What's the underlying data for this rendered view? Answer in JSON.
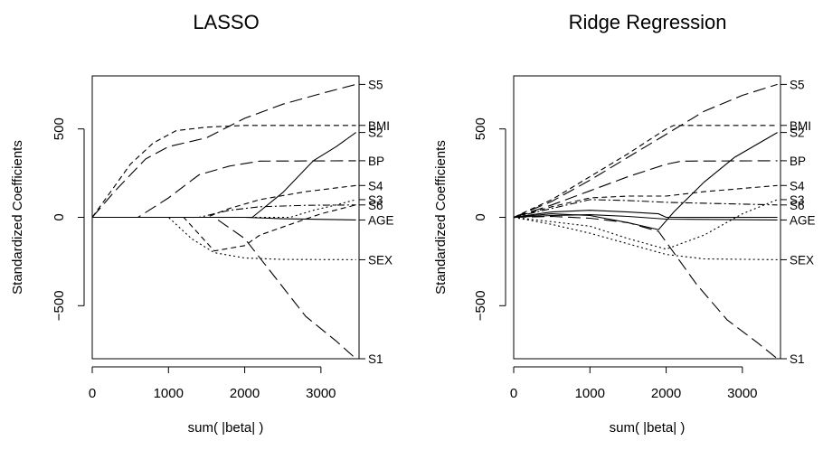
{
  "chart_data": [
    {
      "type": "line",
      "title": "LASSO",
      "xlabel": "sum( |beta| )",
      "ylabel": "Standardized Coefficients",
      "xlim": [
        0,
        3500
      ],
      "ylim": [
        -800,
        800
      ],
      "xticks": [
        0,
        1000,
        2000,
        3000
      ],
      "yticks": [
        -500,
        0,
        500
      ],
      "grid": false,
      "legend": "labels at right edge",
      "series": [
        {
          "name": "S5",
          "dash": "longdash",
          "points": [
            [
              0,
              0
            ],
            [
              300,
              150
            ],
            [
              700,
              330
            ],
            [
              1000,
              400
            ],
            [
              1500,
              450
            ],
            [
              2000,
              560
            ],
            [
              2500,
              640
            ],
            [
              3000,
              700
            ],
            [
              3460,
              752
            ]
          ]
        },
        {
          "name": "BMI",
          "dash": "shortdash",
          "points": [
            [
              0,
              0
            ],
            [
              200,
              120
            ],
            [
              500,
              300
            ],
            [
              800,
              420
            ],
            [
              1100,
              490
            ],
            [
              1500,
              510
            ],
            [
              2000,
              520
            ],
            [
              2500,
              520
            ],
            [
              3000,
              520
            ],
            [
              3460,
              520
            ]
          ]
        },
        {
          "name": "S2",
          "dash": "solid",
          "points": [
            [
              0,
              0
            ],
            [
              2100,
              0
            ],
            [
              2500,
              140
            ],
            [
              2900,
              320
            ],
            [
              3200,
              400
            ],
            [
              3460,
              480
            ]
          ]
        },
        {
          "name": "BP",
          "dash": "longdash",
          "points": [
            [
              0,
              0
            ],
            [
              600,
              0
            ],
            [
              1000,
              110
            ],
            [
              1400,
              240
            ],
            [
              1800,
              290
            ],
            [
              2200,
              318
            ],
            [
              3460,
              320
            ]
          ]
        },
        {
          "name": "S4",
          "dash": "shortdash",
          "points": [
            [
              0,
              0
            ],
            [
              1500,
              0
            ],
            [
              1800,
              50
            ],
            [
              2200,
              100
            ],
            [
              2800,
              145
            ],
            [
              3460,
              180
            ]
          ]
        },
        {
          "name": "S3",
          "dash": "dotted",
          "points": [
            [
              0,
              0
            ],
            [
              2600,
              0
            ],
            [
              2900,
              40
            ],
            [
              3200,
              70
            ],
            [
              3460,
              100
            ]
          ]
        },
        {
          "name": "S6",
          "dash": "dashdot",
          "points": [
            [
              0,
              0
            ],
            [
              1400,
              0
            ],
            [
              1800,
              40
            ],
            [
              2200,
              60
            ],
            [
              2800,
              68
            ],
            [
              3460,
              70
            ]
          ]
        },
        {
          "name": "AGE",
          "dash": "solid",
          "points": [
            [
              0,
              0
            ],
            [
              2000,
              0
            ],
            [
              2500,
              -8
            ],
            [
              3460,
              -15
            ]
          ]
        },
        {
          "name": "SEX",
          "dash": "dotted",
          "points": [
            [
              0,
              0
            ],
            [
              1000,
              0
            ],
            [
              1300,
              -120
            ],
            [
              1600,
              -200
            ],
            [
              2000,
              -230
            ],
            [
              2500,
              -238
            ],
            [
              3460,
              -240
            ]
          ]
        },
        {
          "name": "S1",
          "dash": "longdash",
          "points": [
            [
              0,
              0
            ],
            [
              1600,
              0
            ],
            [
              2000,
              -120
            ],
            [
              2400,
              -340
            ],
            [
              2800,
              -560
            ],
            [
              3200,
              -700
            ],
            [
              3460,
              -800
            ]
          ]
        },
        {
          "name": "",
          "dash": "shortdash",
          "points": [
            [
              0,
              0
            ],
            [
              1200,
              0
            ],
            [
              1600,
              -190
            ],
            [
              2000,
              -160
            ],
            [
              2200,
              -100
            ],
            [
              2600,
              -40
            ],
            [
              3000,
              20
            ],
            [
              3460,
              70
            ]
          ]
        }
      ],
      "right_labels": [
        {
          "text": "S5",
          "value": 752
        },
        {
          "text": "BMI",
          "value": 520
        },
        {
          "text": "S2",
          "value": 480
        },
        {
          "text": "BP",
          "value": 320
        },
        {
          "text": "S4",
          "value": 180
        },
        {
          "text": "S3",
          "value": 100
        },
        {
          "text": "S6",
          "value": 70
        },
        {
          "text": "AGE",
          "value": -15
        },
        {
          "text": "SEX",
          "value": -240
        },
        {
          "text": "S1",
          "value": -800
        }
      ]
    },
    {
      "type": "line",
      "title": "Ridge Regression",
      "xlabel": "sum( |beta| )",
      "ylabel": "Standardized Coefficients",
      "xlim": [
        0,
        3500
      ],
      "ylim": [
        -800,
        800
      ],
      "xticks": [
        0,
        1000,
        2000,
        3000
      ],
      "yticks": [
        -500,
        0,
        500
      ],
      "grid": false,
      "legend": "labels at right edge",
      "series": [
        {
          "name": "S5",
          "dash": "longdash",
          "points": [
            [
              0,
              0
            ],
            [
              500,
              90
            ],
            [
              1000,
              210
            ],
            [
              1500,
              340
            ],
            [
              2000,
              470
            ],
            [
              2500,
              600
            ],
            [
              3000,
              690
            ],
            [
              3460,
              752
            ]
          ]
        },
        {
          "name": "BMI",
          "dash": "shortdash",
          "points": [
            [
              0,
              0
            ],
            [
              500,
              100
            ],
            [
              1000,
              230
            ],
            [
              1500,
              360
            ],
            [
              2000,
              500
            ],
            [
              2100,
              520
            ],
            [
              3460,
              520
            ]
          ]
        },
        {
          "name": "S2",
          "dash": "solid",
          "points": [
            [
              0,
              0
            ],
            [
              500,
              20
            ],
            [
              1000,
              10
            ],
            [
              1500,
              -30
            ],
            [
              1900,
              -70
            ],
            [
              2100,
              30
            ],
            [
              2500,
              200
            ],
            [
              2900,
              340
            ],
            [
              3460,
              480
            ]
          ]
        },
        {
          "name": "BP",
          "dash": "longdash",
          "points": [
            [
              0,
              0
            ],
            [
              500,
              70
            ],
            [
              1000,
              150
            ],
            [
              1500,
              230
            ],
            [
              2000,
              300
            ],
            [
              2200,
              318
            ],
            [
              3460,
              320
            ]
          ]
        },
        {
          "name": "S4",
          "dash": "shortdash",
          "points": [
            [
              0,
              0
            ],
            [
              500,
              60
            ],
            [
              1000,
              110
            ],
            [
              1500,
              120
            ],
            [
              2000,
              120
            ],
            [
              2500,
              145
            ],
            [
              3460,
              180
            ]
          ]
        },
        {
          "name": "S3",
          "dash": "dotted",
          "points": [
            [
              0,
              0
            ],
            [
              1000,
              -50
            ],
            [
              1500,
              -120
            ],
            [
              2000,
              -180
            ],
            [
              2500,
              -100
            ],
            [
              3000,
              20
            ],
            [
              3460,
              100
            ]
          ]
        },
        {
          "name": "S6",
          "dash": "dashdot",
          "points": [
            [
              0,
              0
            ],
            [
              500,
              50
            ],
            [
              1000,
              100
            ],
            [
              1500,
              95
            ],
            [
              2000,
              85
            ],
            [
              3460,
              70
            ]
          ]
        },
        {
          "name": "AGE",
          "dash": "solid",
          "points": [
            [
              0,
              0
            ],
            [
              500,
              10
            ],
            [
              1000,
              15
            ],
            [
              1500,
              5
            ],
            [
              2000,
              -10
            ],
            [
              3460,
              -15
            ]
          ]
        },
        {
          "name": "SEX",
          "dash": "dotted",
          "points": [
            [
              0,
              0
            ],
            [
              500,
              -40
            ],
            [
              1000,
              -90
            ],
            [
              1500,
              -150
            ],
            [
              2000,
              -210
            ],
            [
              2500,
              -235
            ],
            [
              3460,
              -240
            ]
          ]
        },
        {
          "name": "S1",
          "dash": "longdash",
          "points": [
            [
              0,
              0
            ],
            [
              500,
              5
            ],
            [
              1000,
              -5
            ],
            [
              1500,
              -30
            ],
            [
              1900,
              -80
            ],
            [
              2000,
              -140
            ],
            [
              2400,
              -380
            ],
            [
              2800,
              -580
            ],
            [
              3200,
              -710
            ],
            [
              3460,
              -800
            ]
          ]
        },
        {
          "name": "",
          "dash": "solid",
          "points": [
            [
              0,
              0
            ],
            [
              500,
              30
            ],
            [
              1000,
              40
            ],
            [
              1500,
              30
            ],
            [
              1900,
              20
            ],
            [
              2000,
              0
            ],
            [
              3460,
              0
            ]
          ]
        }
      ],
      "right_labels": [
        {
          "text": "S5",
          "value": 752
        },
        {
          "text": "BMI",
          "value": 520
        },
        {
          "text": "S2",
          "value": 480
        },
        {
          "text": "BP",
          "value": 320
        },
        {
          "text": "S4",
          "value": 180
        },
        {
          "text": "S3",
          "value": 100
        },
        {
          "text": "S6",
          "value": 70
        },
        {
          "text": "AGE",
          "value": -15
        },
        {
          "text": "SEX",
          "value": -240
        },
        {
          "text": "S1",
          "value": -800
        }
      ]
    }
  ]
}
